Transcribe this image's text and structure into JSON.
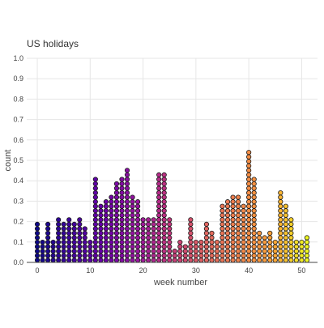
{
  "chart_data": {
    "type": "scatter",
    "style": "dot histogram",
    "title": "US holidays",
    "xlabel": "week number",
    "ylabel": "count",
    "xlim": [
      -2,
      53
    ],
    "ylim": [
      0,
      1.0
    ],
    "x_ticks": [
      0,
      10,
      20,
      30,
      40,
      50
    ],
    "y_ticks": [
      0.0,
      0.1,
      0.2,
      0.3,
      0.4,
      0.5,
      0.6,
      0.7,
      0.8,
      0.9,
      1.0
    ],
    "grid": true,
    "legend": "none",
    "colorscale": "plasma",
    "dot_step": 0.022,
    "weeks": [
      0,
      1,
      2,
      3,
      4,
      5,
      6,
      7,
      8,
      9,
      10,
      11,
      12,
      13,
      14,
      15,
      16,
      17,
      18,
      19,
      20,
      21,
      22,
      23,
      24,
      25,
      26,
      27,
      28,
      29,
      30,
      31,
      32,
      33,
      34,
      35,
      36,
      37,
      38,
      39,
      40,
      41,
      42,
      43,
      44,
      45,
      46,
      47,
      48,
      49,
      50,
      51
    ],
    "counts": [
      0.19,
      0.1,
      0.19,
      0.1,
      0.21,
      0.19,
      0.21,
      0.19,
      0.23,
      0.17,
      0.1,
      0.41,
      0.28,
      0.3,
      0.34,
      0.39,
      0.41,
      0.46,
      0.34,
      0.3,
      0.21,
      0.21,
      0.21,
      0.43,
      0.43,
      0.21,
      0.06,
      0.12,
      0.08,
      0.21,
      0.1,
      0.12,
      0.19,
      0.15,
      0.12,
      0.28,
      0.3,
      0.32,
      0.32,
      0.28,
      0.54,
      0.41,
      0.15,
      0.14,
      0.15,
      0.1,
      0.36,
      0.28,
      0.23,
      0.1,
      0.12,
      0.14
    ]
  }
}
